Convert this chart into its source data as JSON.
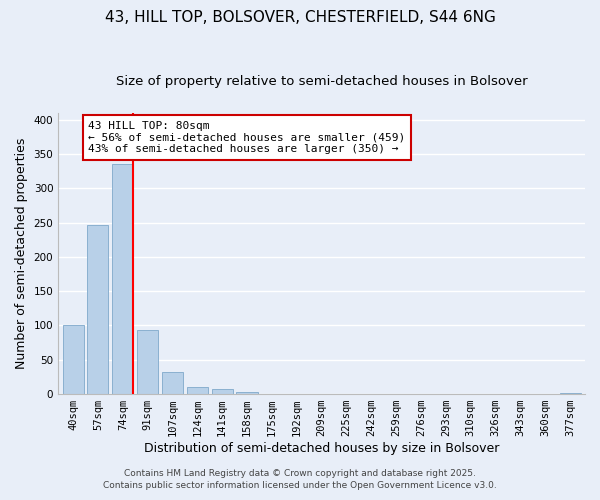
{
  "title": "43, HILL TOP, BOLSOVER, CHESTERFIELD, S44 6NG",
  "subtitle": "Size of property relative to semi-detached houses in Bolsover",
  "xlabel": "Distribution of semi-detached houses by size in Bolsover",
  "ylabel": "Number of semi-detached properties",
  "bar_labels": [
    "40sqm",
    "57sqm",
    "74sqm",
    "91sqm",
    "107sqm",
    "124sqm",
    "141sqm",
    "158sqm",
    "175sqm",
    "192sqm",
    "209sqm",
    "225sqm",
    "242sqm",
    "259sqm",
    "276sqm",
    "293sqm",
    "310sqm",
    "326sqm",
    "343sqm",
    "360sqm",
    "377sqm"
  ],
  "bar_values": [
    100,
    247,
    335,
    93,
    32,
    10,
    8,
    3,
    0,
    0,
    0,
    0,
    0,
    0,
    0,
    0,
    0,
    0,
    0,
    0,
    1
  ],
  "bar_color": "#b8d0e8",
  "bar_edge_color": "#8ab0d0",
  "ylim": [
    0,
    410
  ],
  "yticks": [
    0,
    50,
    100,
    150,
    200,
    250,
    300,
    350,
    400
  ],
  "red_line_x": 2.42,
  "annotation_text": "43 HILL TOP: 80sqm\n← 56% of semi-detached houses are smaller (459)\n43% of semi-detached houses are larger (350) →",
  "annotation_box_color": "#ffffff",
  "annotation_box_edge_color": "#cc0000",
  "footer_line1": "Contains HM Land Registry data © Crown copyright and database right 2025.",
  "footer_line2": "Contains public sector information licensed under the Open Government Licence v3.0.",
  "bg_color": "#e8eef8",
  "grid_color": "#ffffff",
  "title_fontsize": 11,
  "subtitle_fontsize": 9.5,
  "tick_fontsize": 7.5,
  "label_fontsize": 9,
  "footer_fontsize": 6.5,
  "annot_fontsize": 8
}
